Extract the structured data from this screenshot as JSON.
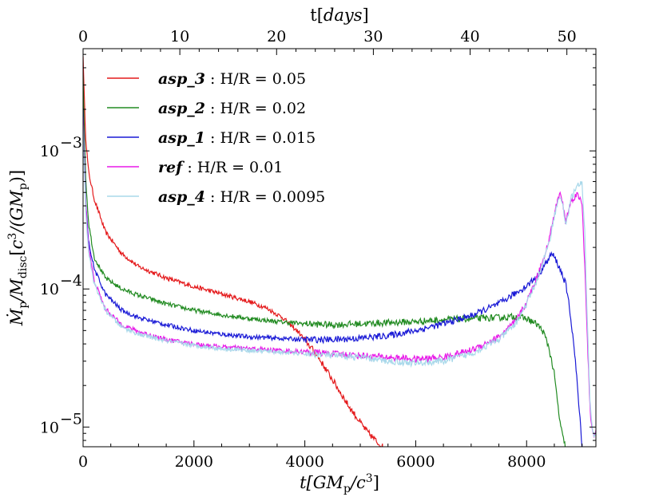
{
  "chart_data": {
    "type": "line",
    "xlabel": "t[GM_p/c^3]",
    "xlabel_top": "t[days]",
    "ylabel": "Ṁp/Mdisc[c^3/(GMp)]",
    "y_scale": "log",
    "xlim": [
      0,
      9250
    ],
    "ylim": [
      7.2e-06,
      0.0055
    ],
    "top_xlim": [
      0,
      53
    ],
    "x_ticks": [
      {
        "value": 0,
        "label": "0"
      },
      {
        "value": 2000,
        "label": "2000"
      },
      {
        "value": 4000,
        "label": "4000"
      },
      {
        "value": 6000,
        "label": "6000"
      },
      {
        "value": 8000,
        "label": "8000"
      }
    ],
    "top_ticks": [
      {
        "value": 0,
        "label": "0"
      },
      {
        "value": 10,
        "label": "10"
      },
      {
        "value": 20,
        "label": "20"
      },
      {
        "value": 30,
        "label": "30"
      },
      {
        "value": 40,
        "label": "40"
      },
      {
        "value": 50,
        "label": "50"
      }
    ],
    "y_ticks": [
      {
        "value": 0.001,
        "label": "10",
        "exp": "−3"
      },
      {
        "value": 0.0001,
        "label": "10",
        "exp": "−4"
      },
      {
        "value": 1e-05,
        "label": "10",
        "exp": "−5"
      }
    ],
    "legend_position": "top-left",
    "series": [
      {
        "name": "asp_3",
        "label": ": H/R = 0.05",
        "color": "#e41a1c",
        "x": [
          0,
          20,
          50,
          100,
          200,
          400,
          700,
          1000,
          1500,
          2000,
          2500,
          3000,
          3300,
          3600,
          3900,
          4200,
          4500,
          4800,
          5100,
          5300,
          5400
        ],
        "y": [
          0.005,
          0.0025,
          0.0012,
          0.0007,
          0.00045,
          0.00026,
          0.00018,
          0.000145,
          0.00012,
          0.000104,
          9.2e-05,
          8.1e-05,
          7.3e-05,
          6.2e-05,
          4.8e-05,
          3.4e-05,
          2.2e-05,
          1.4e-05,
          9.5e-06,
          7.8e-06,
          7.2e-06
        ]
      },
      {
        "name": "asp_2",
        "label": ": H/R = 0.02",
        "color": "#228b22",
        "x": [
          0,
          20,
          50,
          100,
          200,
          400,
          700,
          1000,
          1500,
          2000,
          2500,
          3000,
          3500,
          4000,
          4500,
          5000,
          5500,
          6000,
          6500,
          7000,
          7500,
          7800,
          8000,
          8200,
          8300,
          8400,
          8500,
          8550,
          8600,
          8650,
          8700
        ],
        "y": [
          0.0035,
          0.0015,
          0.0006,
          0.0003,
          0.00017,
          0.00012,
          0.0001,
          9e-05,
          7.8e-05,
          7e-05,
          6.5e-05,
          6.1e-05,
          5.8e-05,
          5.6e-05,
          5.5e-05,
          5.6e-05,
          5.7e-05,
          5.8e-05,
          6e-05,
          6.1e-05,
          6.2e-05,
          6.3e-05,
          6.1e-05,
          5.5e-05,
          4.9e-05,
          3.8e-05,
          2.4e-05,
          1.6e-05,
          1.1e-05,
          8.5e-06,
          7.2e-06
        ]
      },
      {
        "name": "asp_1",
        "label": ": H/R = 0.015",
        "color": "#1a1ad6",
        "x": [
          0,
          20,
          50,
          100,
          200,
          400,
          700,
          1000,
          1500,
          2000,
          2500,
          3000,
          3500,
          4000,
          4500,
          5000,
          5500,
          6000,
          6500,
          7000,
          7500,
          8000,
          8200,
          8400,
          8450,
          8500,
          8550,
          8600,
          8650,
          8700,
          8750,
          8800,
          8850,
          8900,
          8950,
          9000
        ],
        "y": [
          0.002,
          0.001,
          0.0004,
          0.00022,
          0.00014,
          9.2e-05,
          7e-05,
          6.2e-05,
          5.5e-05,
          5e-05,
          4.7e-05,
          4.5e-05,
          4.4e-05,
          4.3e-05,
          4.3e-05,
          4.4e-05,
          4.6e-05,
          5e-05,
          5.6e-05,
          6.4e-05,
          7.8e-05,
          0.000105,
          0.000125,
          0.000165,
          0.00018,
          0.00017,
          0.000155,
          0.00014,
          0.000125,
          0.00011,
          8.5e-05,
          6e-05,
          4e-05,
          2.4e-05,
          1.3e-05,
          7.5e-06
        ]
      },
      {
        "name": "ref",
        "label": ": H/R = 0.01",
        "color": "#e81ae8",
        "x": [
          0,
          20,
          50,
          100,
          200,
          400,
          700,
          1000,
          1500,
          2000,
          2500,
          3000,
          3500,
          4000,
          4500,
          5000,
          5500,
          6000,
          6500,
          7000,
          7500,
          7800,
          8000,
          8200,
          8400,
          8500,
          8600,
          8650,
          8700,
          8750,
          8800,
          8900,
          9000,
          9050,
          9100,
          9150,
          9200,
          9250
        ],
        "y": [
          0.0018,
          0.0009,
          0.0004,
          0.0002,
          0.000115,
          7.2e-05,
          5.5e-05,
          4.9e-05,
          4.3e-05,
          4e-05,
          3.8e-05,
          3.7e-05,
          3.6e-05,
          3.5e-05,
          3.4e-05,
          3.3e-05,
          3.2e-05,
          3.1e-05,
          3.2e-05,
          3.6e-05,
          4.5e-05,
          5.8e-05,
          8e-05,
          0.000125,
          0.00022,
          0.00035,
          0.0005,
          0.00042,
          0.00031,
          0.00036,
          0.00043,
          0.00049,
          0.00042,
          0.00015,
          4e-05,
          1.2e-05,
          8.5e-06,
          9.5e-06
        ]
      },
      {
        "name": "asp_4",
        "label": ": H/R = 0.0095",
        "color": "#a8d8ea",
        "x": [
          0,
          20,
          50,
          100,
          200,
          400,
          700,
          1000,
          1500,
          2000,
          2500,
          3000,
          3500,
          4000,
          4500,
          5000,
          5500,
          6000,
          6500,
          7000,
          7500,
          7800,
          8000,
          8200,
          8400,
          8500,
          8600,
          8650,
          8700,
          8750,
          8800,
          8900,
          9000,
          9050,
          9100,
          9150,
          9200,
          9250
        ],
        "y": [
          0.0015,
          0.0008,
          0.00035,
          0.00018,
          0.00011,
          7e-05,
          5.3e-05,
          4.7e-05,
          4.2e-05,
          3.9e-05,
          3.7e-05,
          3.6e-05,
          3.5e-05,
          3.4e-05,
          3.3e-05,
          3.2e-05,
          3e-05,
          2.9e-05,
          3e-05,
          3.4e-05,
          4.3e-05,
          5.6e-05,
          7.8e-05,
          0.00012,
          0.00021,
          0.00034,
          0.00048,
          0.0004,
          0.0003,
          0.00035,
          0.00045,
          0.00055,
          0.00058,
          0.00025,
          5e-05,
          1.4e-05,
          8.8e-06,
          9.2e-06
        ]
      }
    ]
  }
}
